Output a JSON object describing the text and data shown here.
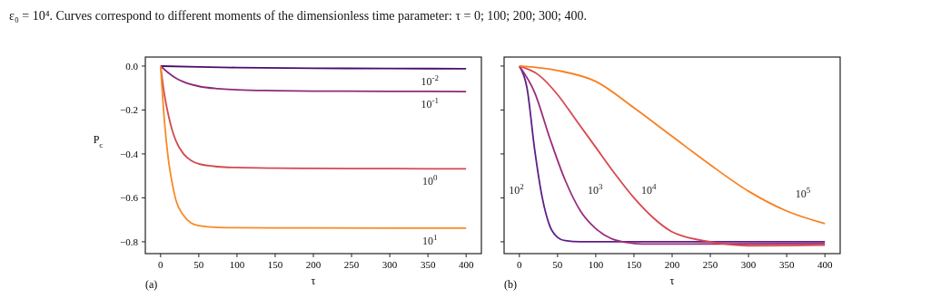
{
  "chart_data": [
    {
      "type": "line",
      "xlabel": "τ",
      "ylabel": "P$_{c}$",
      "annotations": [
        "ε₀ = 10⁴. Curves correspond to different moments of the dimensionless time parameter: τ = 0; 100; 200; 300; 400.",
        "(a)"
      ],
      "xlim": [
        -20,
        420
      ],
      "ylim": [
        -0.854,
        0.041
      ],
      "xticks": [
        0,
        50,
        100,
        150,
        200,
        250,
        300,
        350,
        400
      ],
      "yticks": [
        {
          "value": 0,
          "label": "0.0"
        },
        {
          "value": -0.2,
          "label": "−0.2"
        },
        {
          "value": -0.4,
          "label": "−0.4"
        },
        {
          "value": -0.6,
          "label": "−0.6"
        },
        {
          "value": -0.8,
          "label": "−0.8"
        }
      ],
      "grid": false,
      "series": [
        {
          "name": "10$^{-2}$",
          "color": "#4b0c6b",
          "x": [
            0,
            50,
            100,
            200,
            300,
            400
          ],
          "values": [
            0,
            -0.004,
            -0.007,
            -0.01,
            -0.011,
            -0.012
          ]
        },
        {
          "name": "10$^{-1}$",
          "color": "#8c2a7a",
          "x": [
            0,
            10,
            20,
            30,
            50,
            75,
            100,
            150,
            200,
            300,
            400
          ],
          "values": [
            0,
            -0.03,
            -0.055,
            -0.072,
            -0.092,
            -0.103,
            -0.108,
            -0.112,
            -0.114,
            -0.115,
            -0.116
          ]
        },
        {
          "name": "10$^{0}$",
          "color": "#d24a4f",
          "x": [
            0,
            5,
            10,
            15,
            20,
            30,
            40,
            50,
            75,
            100,
            150,
            200,
            300,
            400
          ],
          "values": [
            0,
            -0.13,
            -0.22,
            -0.29,
            -0.34,
            -0.4,
            -0.43,
            -0.445,
            -0.458,
            -0.462,
            -0.465,
            -0.466,
            -0.467,
            -0.468
          ]
        },
        {
          "name": "10$^{1}$",
          "color": "#f98a25",
          "x": [
            0,
            5,
            10,
            15,
            20,
            30,
            40,
            50,
            75,
            100,
            200,
            400
          ],
          "values": [
            0,
            -0.25,
            -0.42,
            -0.53,
            -0.61,
            -0.68,
            -0.715,
            -0.727,
            -0.735,
            -0.736,
            -0.737,
            -0.738
          ]
        }
      ]
    },
    {
      "type": "line",
      "xlabel": "τ",
      "annotations": [
        "(b)"
      ],
      "xlim": [
        -20,
        420
      ],
      "ylim": [
        -0.854,
        0.041
      ],
      "xticks": [
        0,
        50,
        100,
        150,
        200,
        250,
        300,
        350,
        400
      ],
      "yticks": [
        {
          "value": 0,
          "label": null
        },
        {
          "value": -0.2,
          "label": null
        },
        {
          "value": -0.4,
          "label": null
        },
        {
          "value": -0.6,
          "label": null
        },
        {
          "value": -0.8,
          "label": null
        }
      ],
      "tick_labels": "x",
      "grid": false,
      "series": [
        {
          "name": "10$^{2}$",
          "color": "#5c1f86",
          "x": [
            0,
            10,
            20,
            30,
            40,
            50,
            60,
            80,
            100,
            400
          ],
          "values": [
            0,
            -0.1,
            -0.38,
            -0.6,
            -0.73,
            -0.78,
            -0.795,
            -0.8,
            -0.8,
            -0.8
          ]
        },
        {
          "name": "10$^{3}$",
          "color": "#9a2f7a",
          "x": [
            0,
            20,
            40,
            60,
            80,
            100,
            120,
            140,
            160,
            200,
            400
          ],
          "values": [
            0,
            -0.12,
            -0.33,
            -0.52,
            -0.66,
            -0.74,
            -0.785,
            -0.803,
            -0.81,
            -0.81,
            -0.808
          ]
        },
        {
          "name": "10$^{4}$",
          "color": "#d8484f",
          "x": [
            0,
            25,
            50,
            75,
            100,
            125,
            150,
            175,
            200,
            250,
            300,
            350,
            400
          ],
          "values": [
            0,
            -0.04,
            -0.13,
            -0.25,
            -0.37,
            -0.49,
            -0.6,
            -0.69,
            -0.755,
            -0.8,
            -0.818,
            -0.817,
            -0.815
          ]
        },
        {
          "name": "10$^{5}$",
          "color": "#f98021",
          "x": [
            0,
            50,
            100,
            150,
            200,
            250,
            300,
            350,
            400
          ],
          "values": [
            0,
            -0.02,
            -0.07,
            -0.19,
            -0.32,
            -0.45,
            -0.57,
            -0.66,
            -0.717
          ]
        }
      ]
    }
  ]
}
